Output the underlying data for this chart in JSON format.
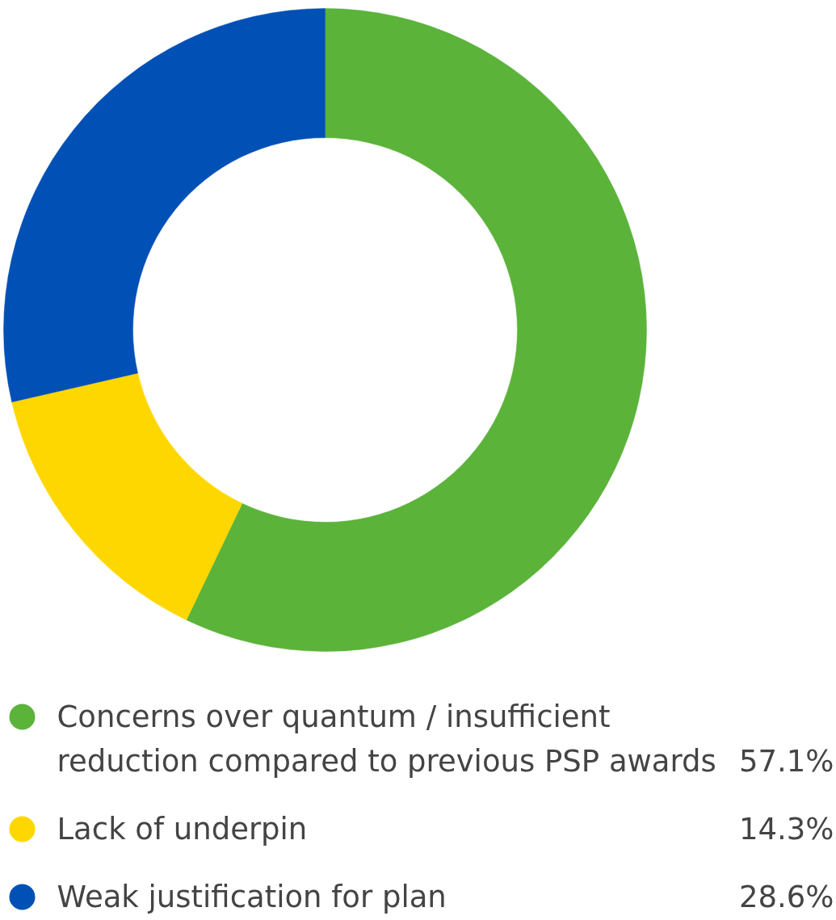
{
  "chart_data": {
    "type": "donut",
    "categories": [
      "Concerns over quantum / insufficient\nreduction compared to previous PSP awards",
      "Lack of underpin",
      "Weak justification for plan"
    ],
    "values": [
      57.1,
      14.3,
      28.6
    ],
    "colors": [
      "#5bb33a",
      "#ffd700",
      "#0050b5"
    ],
    "value_labels": [
      "57.1%",
      "14.3%",
      "28.6%"
    ],
    "legend": "bottom"
  }
}
